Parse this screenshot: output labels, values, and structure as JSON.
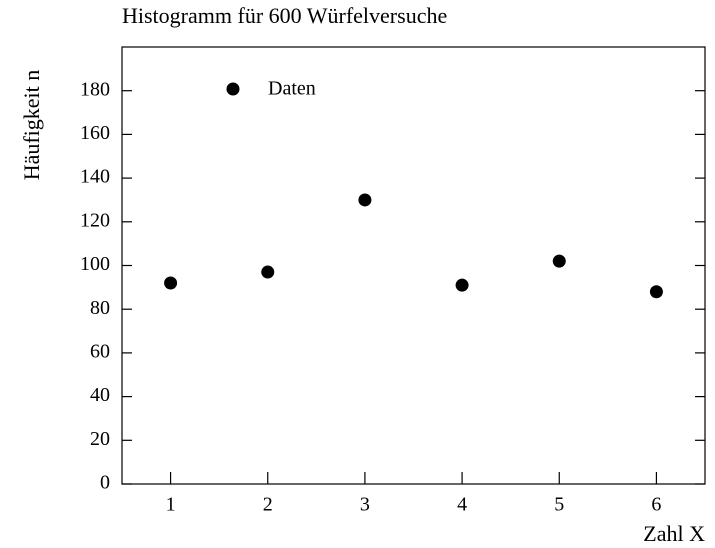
{
  "chart_data": {
    "type": "scatter",
    "title": "Histogramm für 600 Würfelversuche",
    "xlabel": "Zahl X",
    "ylabel": "Häufigkeit n",
    "series": [
      {
        "name": "Daten",
        "color": "#000000",
        "x": [
          1,
          2,
          3,
          4,
          5,
          6
        ],
        "values": [
          92,
          97,
          130,
          91,
          102,
          88
        ]
      }
    ],
    "xlim": [
      0.5,
      6.5
    ],
    "xticks": [
      1,
      2,
      3,
      4,
      5,
      6
    ],
    "ylim": [
      0,
      200
    ],
    "yticks": [
      0,
      20,
      40,
      60,
      80,
      100,
      120,
      140,
      160,
      180
    ],
    "legend": "upper left",
    "grid": false
  }
}
